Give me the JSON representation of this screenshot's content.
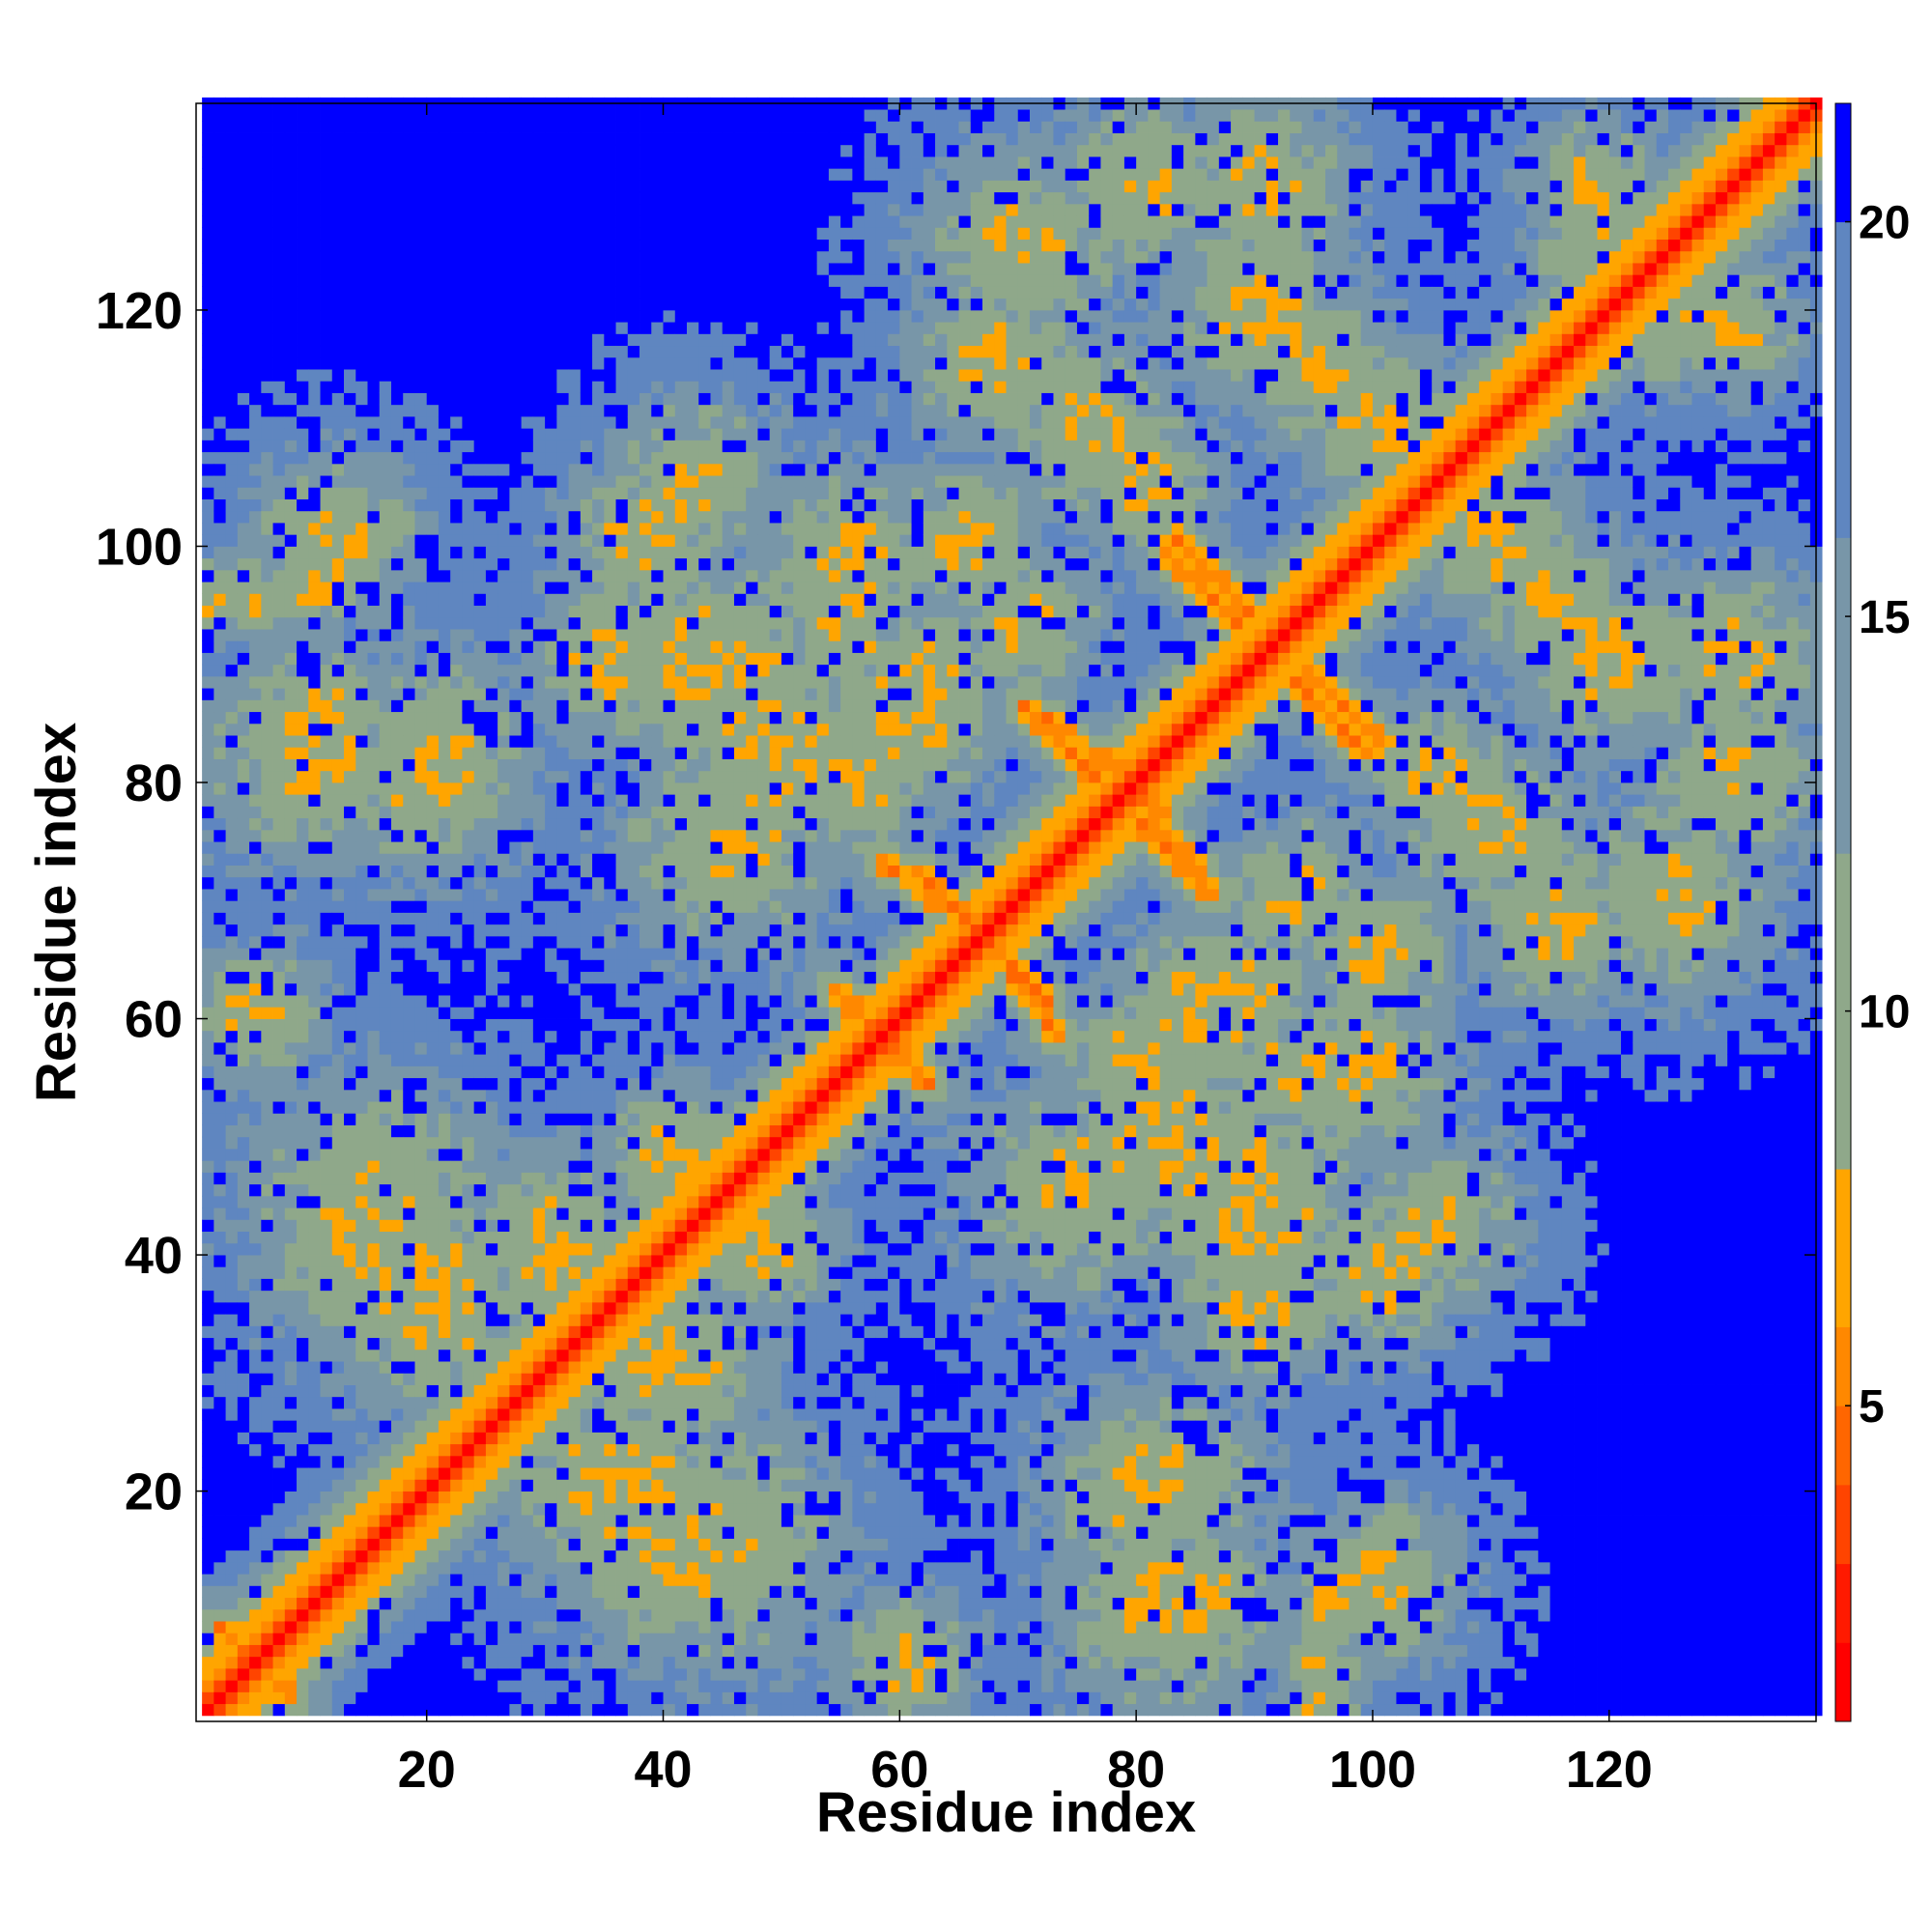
{
  "chart_data": {
    "type": "heatmap",
    "title": "",
    "xlabel": "Residue index",
    "ylabel": "Residue index",
    "n_residues": 137,
    "xlim": [
      1,
      137
    ],
    "ylim": [
      1,
      137
    ],
    "x_ticks": [
      "20",
      "40",
      "60",
      "80",
      "100",
      "120"
    ],
    "x_tick_values": [
      20,
      40,
      60,
      80,
      100,
      120
    ],
    "y_ticks": [
      "20",
      "40",
      "60",
      "80",
      "100",
      "120"
    ],
    "y_tick_values": [
      20,
      40,
      60,
      80,
      100,
      120
    ],
    "colorbar": {
      "range": [
        1,
        21.5
      ],
      "ticks": [
        "5",
        "10",
        "15",
        "20"
      ],
      "tick_values": [
        5,
        10,
        15,
        20
      ],
      "colors": [
        "#ff0000",
        "#ff1a00",
        "#ff4400",
        "#ff6600",
        "#ff8800",
        "#ffa500",
        "#8fa88a",
        "#7896a8",
        "#5f86c0",
        "#0000ff"
      ],
      "boundaries": [
        1,
        2,
        3,
        4,
        5,
        6,
        8,
        12,
        16,
        20,
        21.5
      ]
    },
    "description": "Symmetric residue-residue distance map; red diagonal band, orange secondary-structure contacts, blue for distances above 20"
  }
}
